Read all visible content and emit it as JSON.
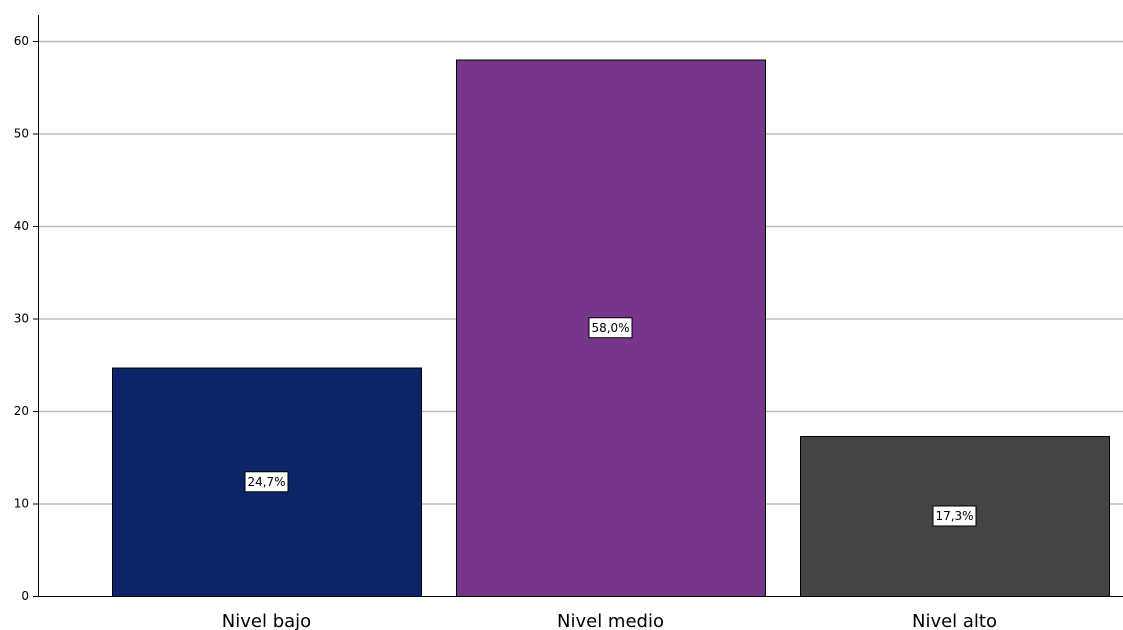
{
  "chart_data": {
    "type": "bar",
    "categories": [
      "Nivel bajo",
      "Nivel medio",
      "Nivel alto"
    ],
    "values": [
      24.7,
      58.0,
      17.3
    ],
    "data_labels": [
      "24,7%",
      "58,0%",
      "17,3%"
    ],
    "colors": [
      "#0c2468",
      "#76378a",
      "#444444"
    ],
    "title": "",
    "xlabel": "",
    "ylabel": "",
    "ylim": [
      0,
      60
    ],
    "yticks": [
      0,
      10,
      20,
      30,
      40,
      50,
      60
    ],
    "ytick_labels": [
      "0",
      "10",
      "20",
      "30",
      "40",
      "50",
      "60"
    ],
    "grid": "horizontal",
    "gridline_color": "#bdbdbd",
    "bar_outline_color": "#000000"
  }
}
